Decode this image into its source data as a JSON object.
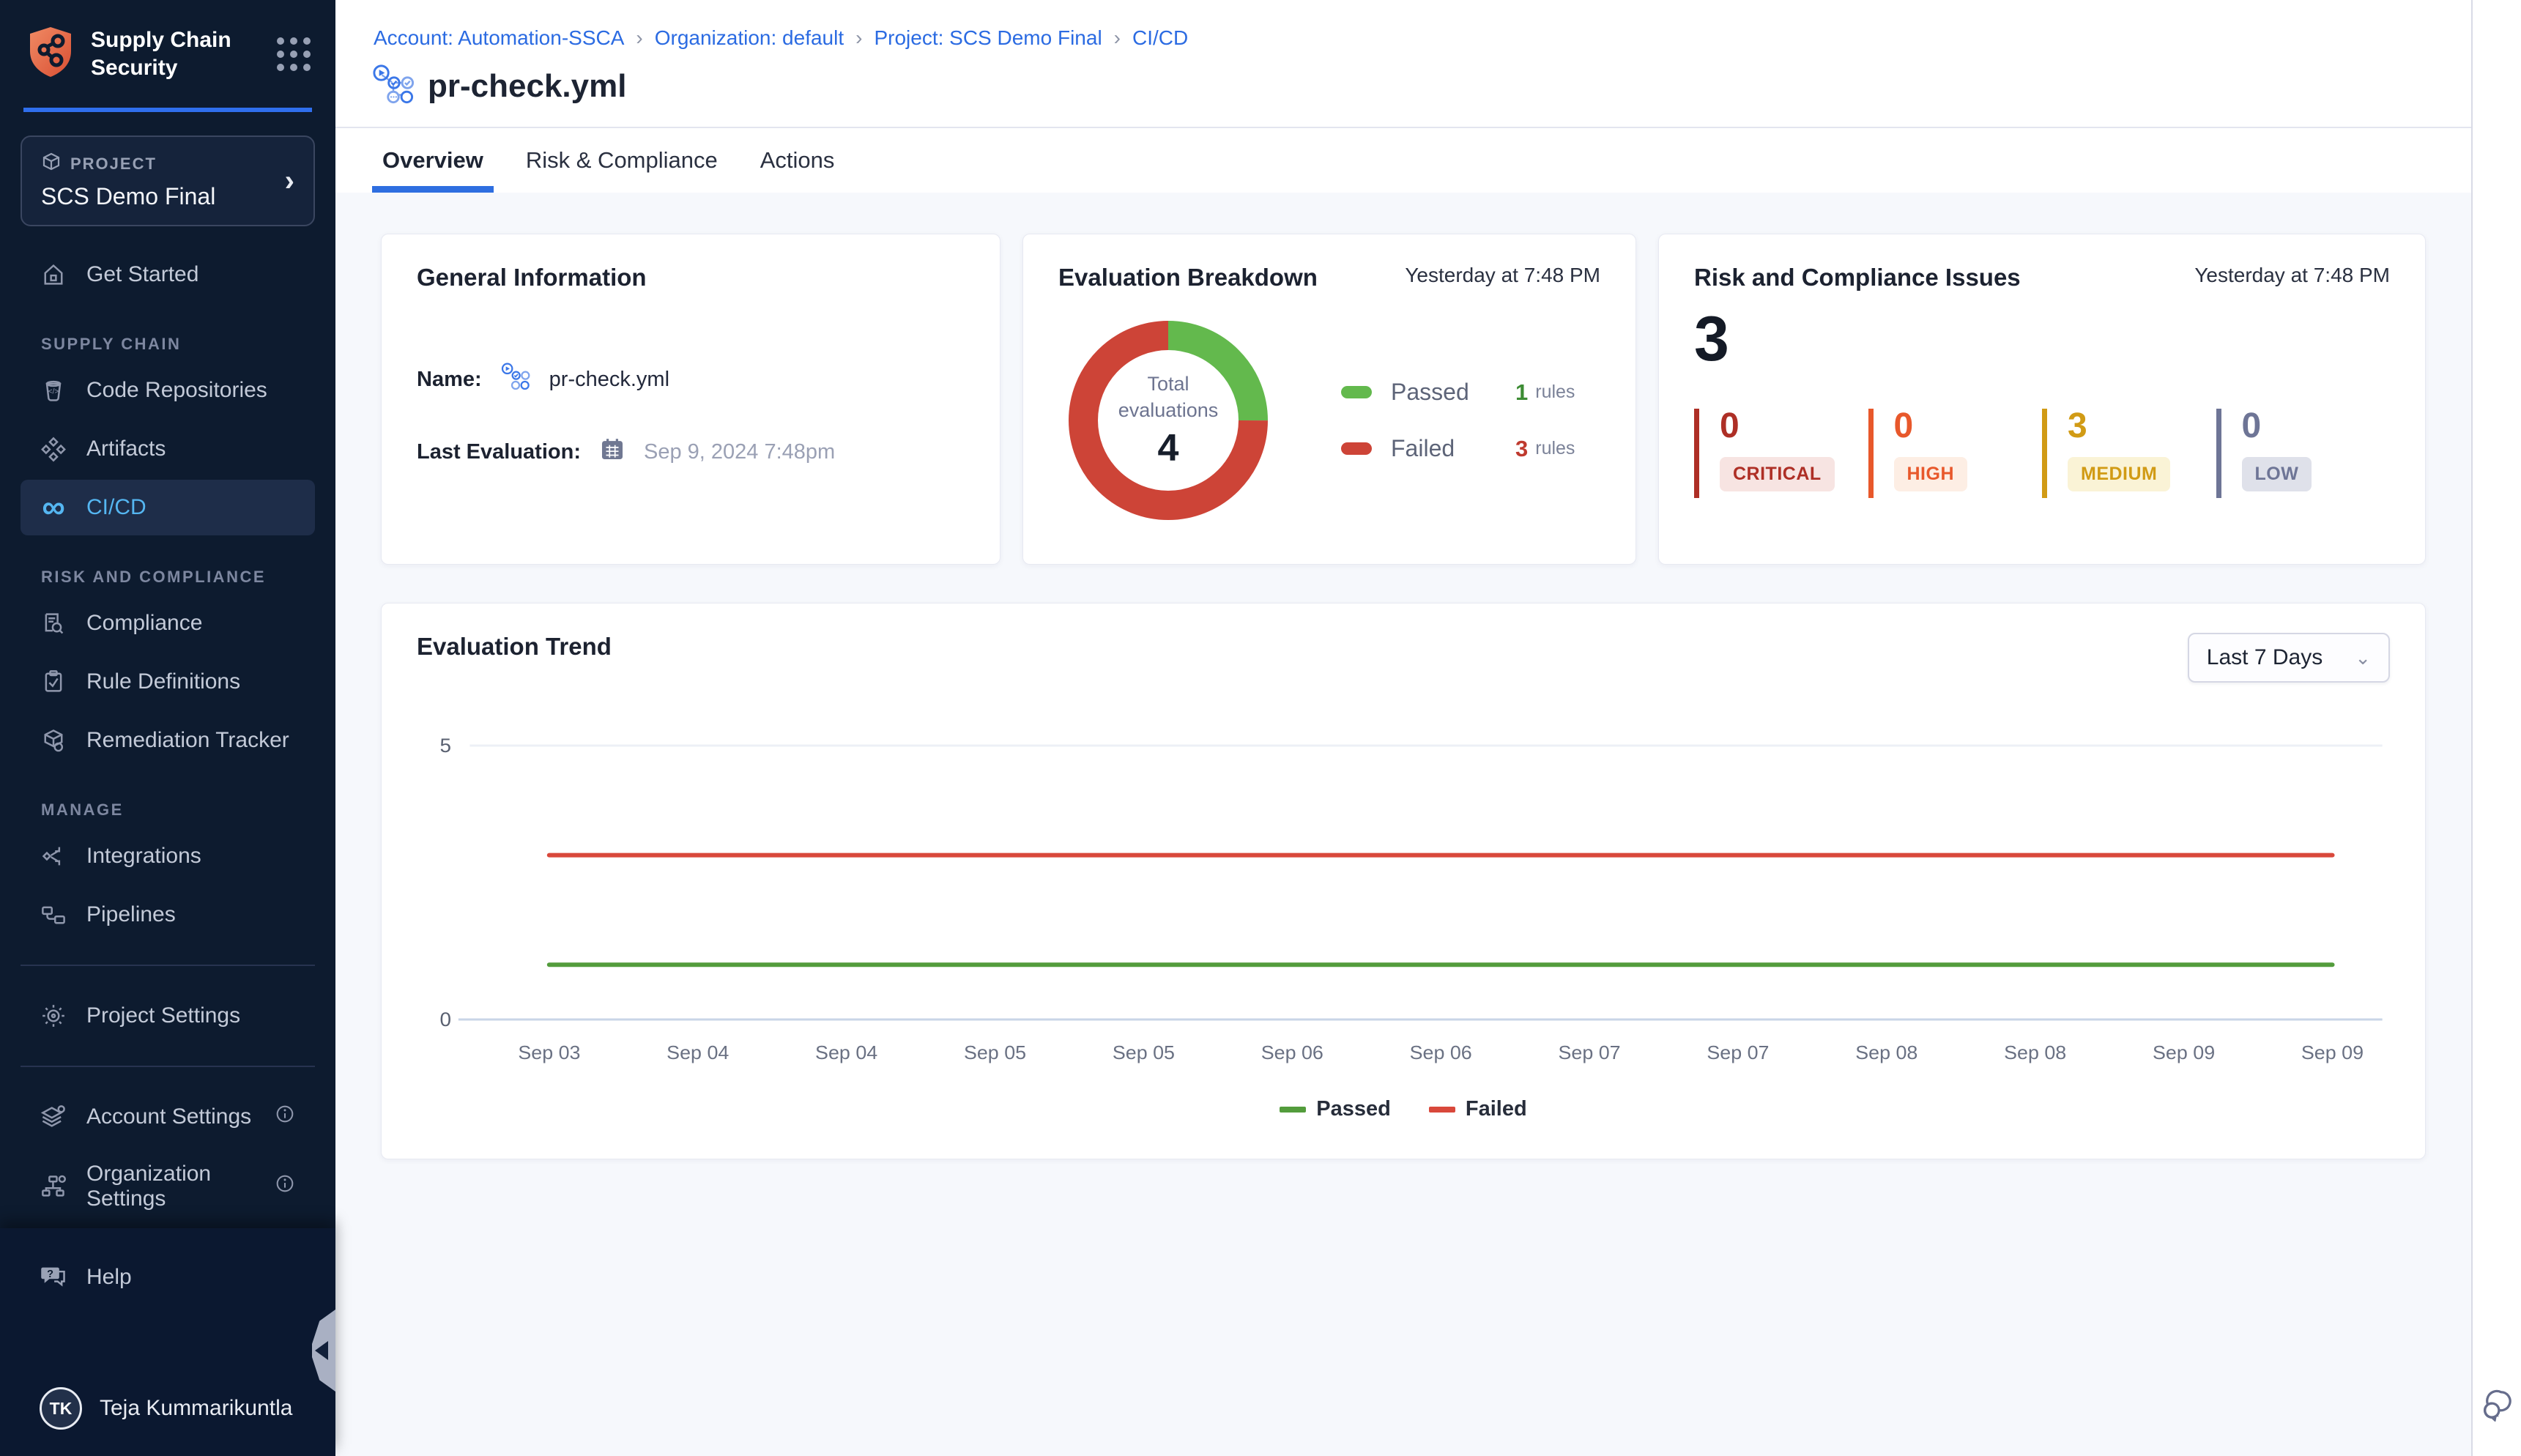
{
  "colors": {
    "accent_blue": "#2e6ee0",
    "sidebar_bg": "#0d1b2f",
    "active_nav": "#55b6f1",
    "passed_green": "#63b94d",
    "failed_red": "#cd4437",
    "trend_green": "#539c3c",
    "trend_red": "#d9483b"
  },
  "sidebar": {
    "app_title": "Supply Chain Security",
    "project": {
      "label": "PROJECT",
      "name": "SCS Demo Final"
    },
    "nav": {
      "get_started": "Get Started",
      "supply_chain_header": "SUPPLY CHAIN",
      "code_repositories": "Code Repositories",
      "artifacts": "Artifacts",
      "cicd": "CI/CD",
      "risk_header": "RISK AND COMPLIANCE",
      "compliance": "Compliance",
      "rule_definitions": "Rule Definitions",
      "remediation_tracker": "Remediation Tracker",
      "manage_header": "MANAGE",
      "integrations": "Integrations",
      "pipelines": "Pipelines",
      "project_settings": "Project Settings",
      "account_settings": "Account Settings",
      "organization_settings": "Organization Settings"
    },
    "footer": {
      "help": "Help",
      "user_initials": "TK",
      "user_name": "Teja Kummarikuntla"
    }
  },
  "header": {
    "breadcrumb": {
      "items": [
        "Account: Automation-SSCA",
        "Organization: default",
        "Project: SCS Demo Final",
        "CI/CD"
      ],
      "separator": "›"
    },
    "title": "pr-check.yml",
    "tabs": [
      "Overview",
      "Risk & Compliance",
      "Actions"
    ],
    "active_tab": "Overview"
  },
  "cards": {
    "general": {
      "title": "General Information",
      "name_label": "Name:",
      "name_value": "pr-check.yml",
      "last_eval_label": "Last Evaluation:",
      "last_eval_value": "Sep 9, 2024 7:48pm"
    },
    "breakdown": {
      "title": "Evaluation Breakdown",
      "timestamp": "Yesterday at 7:48 PM",
      "center_label": "Total evaluations",
      "total": "4",
      "legend": [
        {
          "label": "Passed",
          "value": "1",
          "unit": "rules",
          "color": "#63b94d",
          "value_color": "#3d8c34"
        },
        {
          "label": "Failed",
          "value": "3",
          "unit": "rules",
          "color": "#cd4437",
          "value_color": "#bf3a2e"
        }
      ]
    },
    "risk": {
      "title": "Risk and Compliance Issues",
      "timestamp": "Yesterday at 7:48 PM",
      "total": "3",
      "severities": [
        {
          "label": "CRITICAL",
          "value": "0",
          "color": "#ae2f26",
          "bg": "#f7e4e2"
        },
        {
          "label": "HIGH",
          "value": "0",
          "color": "#e8582b",
          "bg": "#fdeee4"
        },
        {
          "label": "MEDIUM",
          "value": "3",
          "color": "#d19b15",
          "bg": "#faf3d6"
        },
        {
          "label": "LOW",
          "value": "0",
          "color": "#6e7596",
          "bg": "#dfe1ea"
        }
      ]
    },
    "trend": {
      "title": "Evaluation Trend",
      "range_label": "Last 7 Days"
    }
  },
  "chart_data": [
    {
      "type": "pie",
      "title": "Evaluation Breakdown",
      "labels": [
        "Passed",
        "Failed"
      ],
      "values": [
        1,
        3
      ],
      "colors": [
        "#63b94d",
        "#cd4437"
      ],
      "center_label": "Total evaluations",
      "center_value": 4,
      "donut": true
    },
    {
      "type": "line",
      "title": "Evaluation Trend",
      "x": [
        "Sep 03",
        "Sep 04",
        "Sep 04",
        "Sep 05",
        "Sep 05",
        "Sep 06",
        "Sep 06",
        "Sep 07",
        "Sep 07",
        "Sep 08",
        "Sep 08",
        "Sep 09",
        "Sep 09"
      ],
      "series": [
        {
          "name": "Passed",
          "color": "#539c3c",
          "values": [
            1,
            1,
            1,
            1,
            1,
            1,
            1,
            1,
            1,
            1,
            1,
            1,
            1
          ]
        },
        {
          "name": "Failed",
          "color": "#d9483b",
          "values": [
            3,
            3,
            3,
            3,
            3,
            3,
            3,
            3,
            3,
            3,
            3,
            3,
            3
          ]
        }
      ],
      "ylim": [
        0,
        5
      ],
      "yticks": [
        0,
        5
      ],
      "xlabel": "",
      "ylabel": "",
      "grid": "top-gridline-only",
      "legend_position": "bottom"
    }
  ]
}
